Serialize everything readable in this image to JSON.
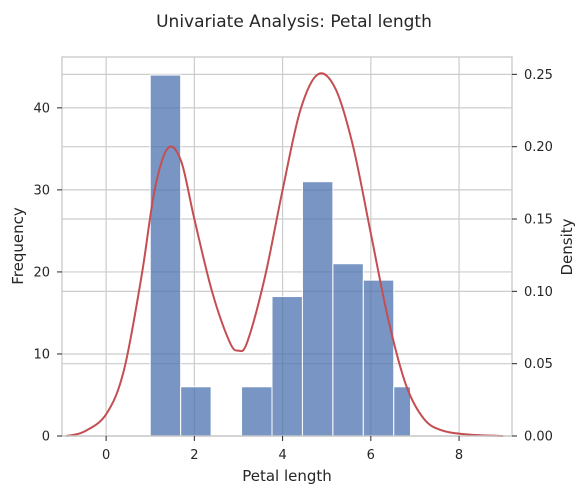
{
  "chart_data": {
    "type": "bar",
    "title": "Univariate Analysis: Petal length",
    "xlabel": "Petal length",
    "ylabel": "Frequency",
    "y2label": "Density",
    "xlim": [
      -1.0,
      9.2
    ],
    "ylim": [
      0,
      46.2
    ],
    "y2lim": [
      0,
      0.262
    ],
    "xticks": [
      0,
      2,
      4,
      6,
      8
    ],
    "yticks": [
      0,
      10,
      20,
      30,
      40
    ],
    "y2ticks": [
      0.0,
      0.05,
      0.1,
      0.15,
      0.2,
      0.25
    ],
    "y2tick_labels": [
      "0.00",
      "0.05",
      "0.10",
      "0.15",
      "0.20",
      "0.25"
    ],
    "grid": true,
    "bins": [
      {
        "x0": 1.0,
        "x1": 1.69,
        "count": 44
      },
      {
        "x0": 1.69,
        "x1": 2.38,
        "count": 6
      },
      {
        "x0": 2.38,
        "x1": 3.07,
        "count": 0
      },
      {
        "x0": 3.07,
        "x1": 3.76,
        "count": 6
      },
      {
        "x0": 3.76,
        "x1": 4.45,
        "count": 17
      },
      {
        "x0": 4.45,
        "x1": 5.14,
        "count": 31
      },
      {
        "x0": 5.14,
        "x1": 5.83,
        "count": 21
      },
      {
        "x0": 5.83,
        "x1": 6.52,
        "count": 19
      },
      {
        "x0": 6.52,
        "x1": 6.9,
        "count": 6
      }
    ],
    "density_curve": {
      "axis": "right",
      "points": [
        [
          -0.9,
          0.0
        ],
        [
          -0.5,
          0.003
        ],
        [
          0.0,
          0.015
        ],
        [
          0.4,
          0.045
        ],
        [
          0.8,
          0.11
        ],
        [
          1.1,
          0.17
        ],
        [
          1.4,
          0.199
        ],
        [
          1.7,
          0.19
        ],
        [
          2.0,
          0.15
        ],
        [
          2.4,
          0.1
        ],
        [
          2.8,
          0.065
        ],
        [
          3.0,
          0.059
        ],
        [
          3.2,
          0.065
        ],
        [
          3.6,
          0.11
        ],
        [
          4.0,
          0.17
        ],
        [
          4.4,
          0.225
        ],
        [
          4.8,
          0.25
        ],
        [
          5.2,
          0.24
        ],
        [
          5.6,
          0.2
        ],
        [
          6.0,
          0.14
        ],
        [
          6.4,
          0.08
        ],
        [
          6.8,
          0.035
        ],
        [
          7.2,
          0.012
        ],
        [
          7.6,
          0.004
        ],
        [
          8.2,
          0.001
        ],
        [
          9.0,
          0.0
        ]
      ]
    },
    "colors": {
      "bar": "#4c72b0",
      "curve": "#c44e52",
      "grid": "#cccccc",
      "background": "#ffffff"
    }
  }
}
